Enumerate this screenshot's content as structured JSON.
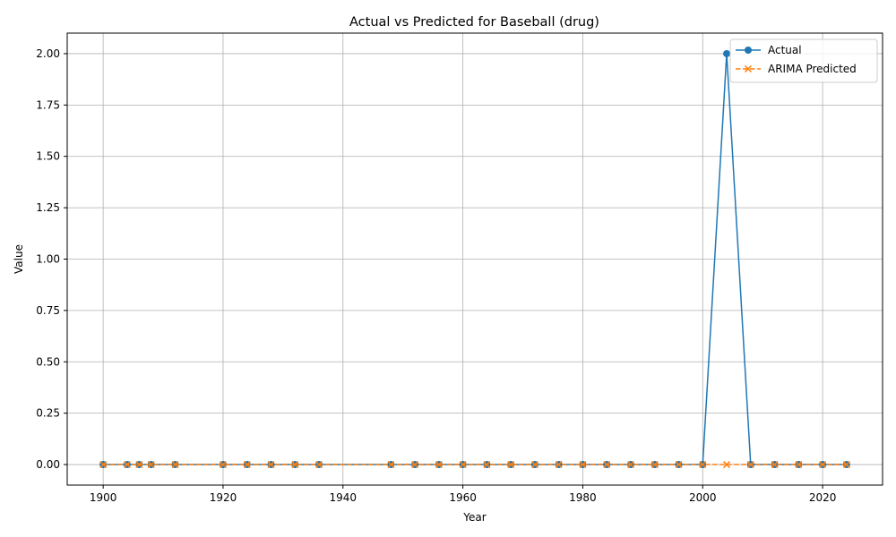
{
  "chart_data": {
    "type": "line",
    "title": "Actual vs Predicted for Baseball (drug)",
    "xlabel": "Year",
    "ylabel": "Value",
    "xlim": [
      1894,
      2030
    ],
    "ylim": [
      -0.1,
      2.1
    ],
    "xticks": [
      1900,
      1920,
      1940,
      1960,
      1980,
      2000,
      2020
    ],
    "yticks": [
      "0.00",
      "0.25",
      "0.50",
      "0.75",
      "1.00",
      "1.25",
      "1.50",
      "1.75",
      "2.00"
    ],
    "grid": true,
    "legend_position": "top-right",
    "x": [
      1900,
      1904,
      1906,
      1908,
      1912,
      1920,
      1924,
      1928,
      1932,
      1936,
      1948,
      1952,
      1956,
      1960,
      1964,
      1968,
      1972,
      1976,
      1980,
      1984,
      1988,
      1992,
      1996,
      2000,
      2004,
      2008,
      2012,
      2016,
      2020,
      2024
    ],
    "series": [
      {
        "name": "Actual",
        "color": "#1f77b4",
        "marker": "circle",
        "linestyle": "solid",
        "values": [
          0,
          0,
          0,
          0,
          0,
          0,
          0,
          0,
          0,
          0,
          0,
          0,
          0,
          0,
          0,
          0,
          0,
          0,
          0,
          0,
          0,
          0,
          0,
          0,
          2,
          0,
          0,
          0,
          0,
          0
        ]
      },
      {
        "name": "ARIMA Predicted",
        "color": "#ff7f0e",
        "marker": "x",
        "linestyle": "dashed",
        "values": [
          0,
          0,
          0,
          0,
          0,
          0,
          0,
          0,
          0,
          0,
          0,
          0,
          0,
          0,
          0,
          0,
          0,
          0,
          0,
          0,
          0,
          0,
          0,
          0,
          0,
          0,
          0,
          0,
          0,
          0
        ]
      }
    ]
  }
}
